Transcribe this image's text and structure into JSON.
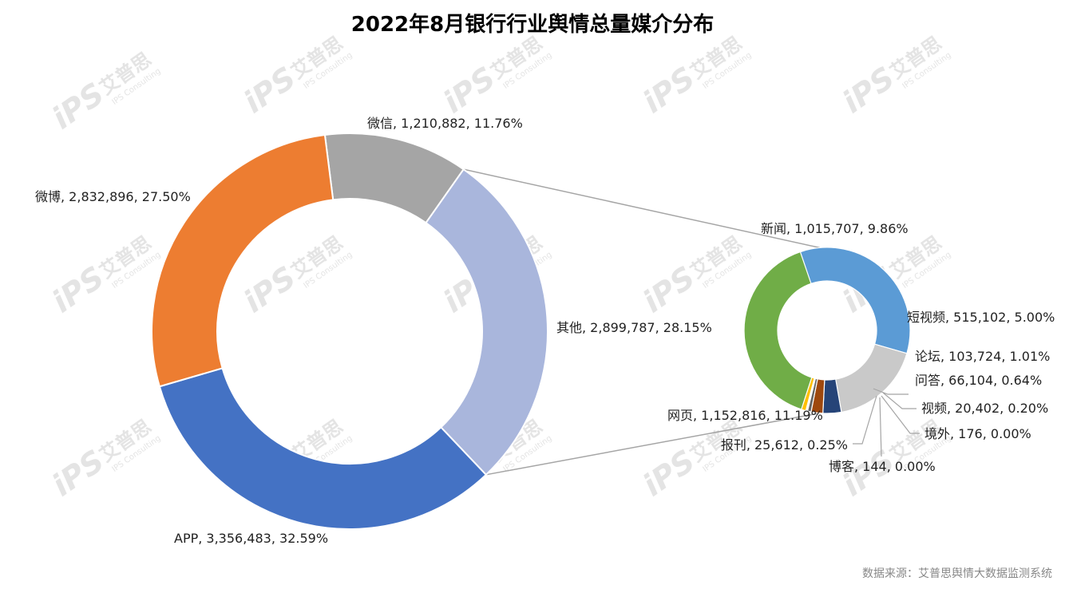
{
  "page": {
    "title": "2022年8月银行行业舆情总量媒介分布",
    "source": "数据来源：艾普思舆情大数据监测系统",
    "watermark_brand": "iPS",
    "watermark_cn": "艾普思",
    "watermark_en": "IPS Consulting"
  },
  "chart_data": {
    "type": "pie",
    "variant": "pie-of-pie (doughnut)",
    "title": "2022年8月银行行业舆情总量媒介分布",
    "primary": {
      "slices": [
        {
          "name": "微信",
          "value": 1210882,
          "percent": 11.76,
          "label": "微信, 1,210,882, 11.76%",
          "color": "#A5A5A5"
        },
        {
          "name": "其他",
          "value": 2899787,
          "percent": 28.15,
          "label": "其他, 2,899,787, 28.15%",
          "color": "#A9B6DC"
        },
        {
          "name": "APP",
          "value": 3356483,
          "percent": 32.59,
          "label": "APP, 3,356,483, 32.59%",
          "color": "#4472C4"
        },
        {
          "name": "微博",
          "value": 2832896,
          "percent": 27.5,
          "label": "微博, 2,832,896, 27.50%",
          "color": "#ED7D31"
        }
      ]
    },
    "secondary": {
      "parent": "其他",
      "slices": [
        {
          "name": "新闻",
          "value": 1015707,
          "percent": 9.86,
          "label": "新闻, 1,015,707, 9.86%",
          "color": "#5B9BD5"
        },
        {
          "name": "短视频",
          "value": 515102,
          "percent": 5.0,
          "label": "短视频, 515,102, 5.00%",
          "color": "#C9C9C9"
        },
        {
          "name": "论坛",
          "value": 103724,
          "percent": 1.01,
          "label": "论坛, 103,724, 1.01%",
          "color": "#264478"
        },
        {
          "name": "问答",
          "value": 66104,
          "percent": 0.64,
          "label": "问答, 66,104, 0.64%",
          "color": "#9E480E"
        },
        {
          "name": "视频",
          "value": 20402,
          "percent": 0.2,
          "label": "视频, 20,402, 0.20%",
          "color": "#636363"
        },
        {
          "name": "境外",
          "value": 176,
          "percent": 0.0,
          "label": "境外, 176, 0.00%",
          "color": "#997300"
        },
        {
          "name": "博客",
          "value": 144,
          "percent": 0.0,
          "label": "博客, 144, 0.00%",
          "color": "#255E91"
        },
        {
          "name": "报刊",
          "value": 25612,
          "percent": 0.25,
          "label": "报刊, 25,612, 0.25%",
          "color": "#FFC000"
        },
        {
          "name": "网页",
          "value": 1152816,
          "percent": 11.19,
          "label": "网页, 1,152,816, 11.19%",
          "color": "#70AD47"
        }
      ]
    }
  }
}
